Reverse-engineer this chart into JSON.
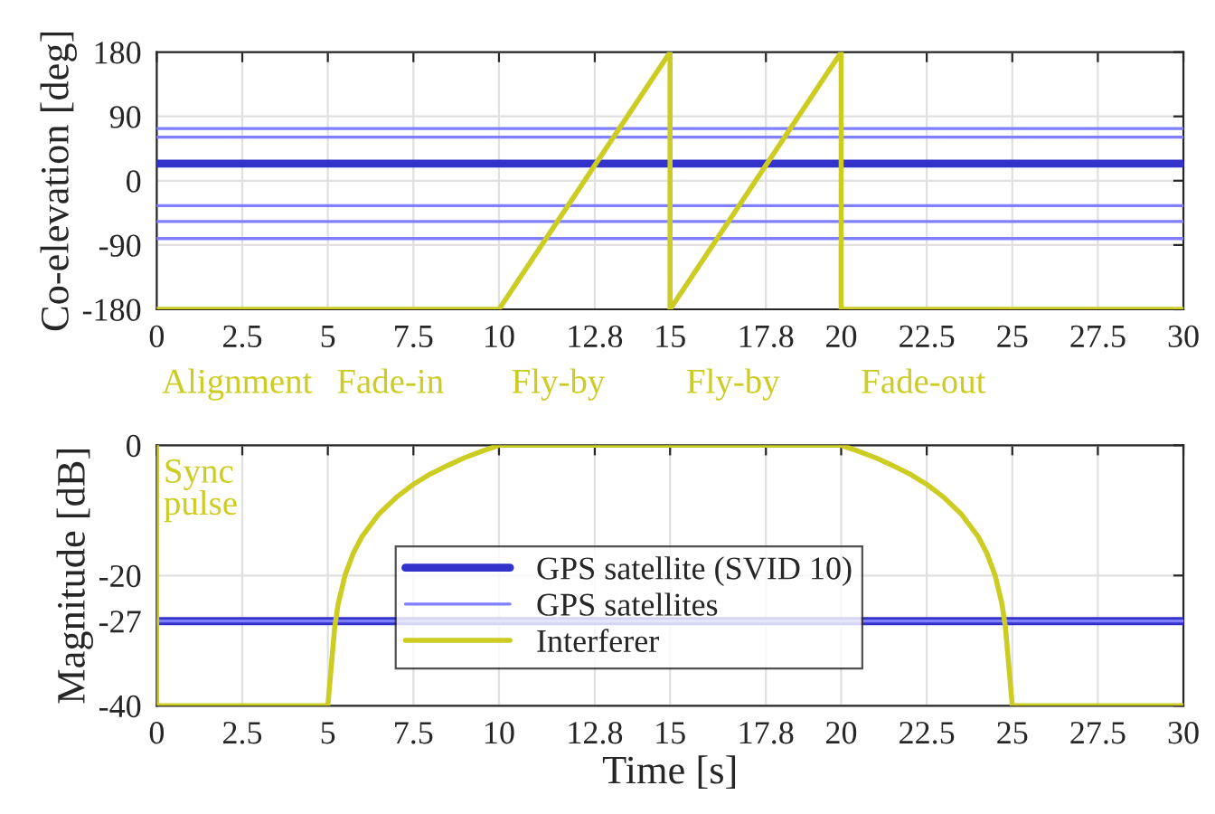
{
  "chart_data": [
    {
      "type": "line",
      "ylabel": "Co-elevation [deg]",
      "xlim": [
        0,
        30
      ],
      "ylim": [
        -180,
        180
      ],
      "xticks": [
        0,
        2.5,
        5,
        7.5,
        10,
        12.8,
        15,
        17.8,
        20,
        22.5,
        25,
        27.5,
        30
      ],
      "yticks": [
        -180,
        -90,
        0,
        90,
        180
      ],
      "grid": true,
      "legend": false,
      "series": [
        {
          "color": "#3333cc",
          "x": [
            0,
            30
          ],
          "values": [
            24,
            24
          ]
        },
        {
          "color": "#7f7fff",
          "x": [
            0,
            30
          ],
          "values": [
            73,
            73
          ]
        },
        {
          "color": "#7f7fff",
          "x": [
            0,
            30
          ],
          "values": [
            61,
            61
          ]
        },
        {
          "color": "#7f7fff",
          "x": [
            0,
            30
          ],
          "values": [
            -35,
            -35
          ]
        },
        {
          "color": "#7f7fff",
          "x": [
            0,
            30
          ],
          "values": [
            -57,
            -57
          ]
        },
        {
          "color": "#7f7fff",
          "x": [
            0,
            30
          ],
          "values": [
            -81,
            -81
          ]
        },
        {
          "color": "#cccc22",
          "x": [
            0,
            10,
            15,
            15,
            20,
            20,
            30
          ],
          "values": [
            -180,
            -180,
            180,
            -180,
            180,
            -180,
            -180
          ]
        }
      ],
      "annotations": [
        "Alignment",
        "Fade-in",
        "Fly-by",
        "Fly-by",
        "Fade-out"
      ]
    },
    {
      "type": "line",
      "xlabel": "Time [s]",
      "ylabel": "Magnitude [dB]",
      "xlim": [
        0,
        30
      ],
      "ylim": [
        -40,
        0
      ],
      "xticks": [
        0,
        2.5,
        5,
        7.5,
        10,
        12.8,
        15,
        17.8,
        20,
        22.5,
        25,
        27.5,
        30
      ],
      "yticks": [
        -40,
        -27,
        -20,
        0
      ],
      "grid": true,
      "legend": "bottom",
      "series": [
        {
          "name": "GPS satellite (SVID 10)",
          "color": "#3333cc",
          "x": [
            0,
            30
          ],
          "values": [
            -27,
            -27
          ]
        },
        {
          "name": "GPS satellites",
          "color": "#7f7fff",
          "x": [
            0,
            30
          ],
          "values": [
            -27,
            -27
          ]
        },
        {
          "name": "Interferer",
          "color": "#cccc22",
          "x": [
            0,
            0,
            5,
            5.1,
            5.2,
            5.3,
            5.5,
            5.75,
            6,
            6.5,
            7,
            7.5,
            8,
            8.5,
            9,
            9.5,
            10,
            20,
            20.5,
            21,
            21.5,
            22,
            22.5,
            23,
            23.5,
            24,
            24.25,
            24.5,
            24.7,
            24.8,
            24.9,
            25,
            30
          ],
          "values": [
            0,
            -40,
            -40,
            -34,
            -28,
            -24.4,
            -20,
            -16.5,
            -14,
            -10.5,
            -8,
            -6,
            -4.4,
            -3.1,
            -1.9,
            -0.9,
            0,
            0,
            -0.9,
            -1.9,
            -3.1,
            -4.4,
            -6,
            -8,
            -10.5,
            -14,
            -16.5,
            -20,
            -24.4,
            -28,
            -34,
            -40,
            -40
          ]
        }
      ],
      "annotations": [
        {
          "text": "Sync\npulse",
          "x": 0,
          "y": -2
        }
      ]
    }
  ]
}
